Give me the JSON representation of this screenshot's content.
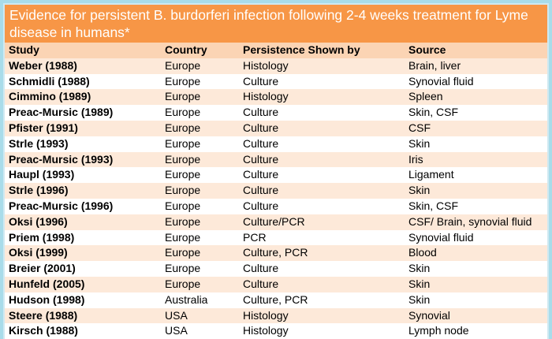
{
  "title": "Evidence for persistent B. burdorferi infection following 2-4 weeks treatment for Lyme disease in humans*",
  "headers": {
    "study": "Study",
    "country": "Country",
    "persistence": "Persistence Shown by",
    "source": "Source"
  },
  "rows": [
    {
      "study": "Weber (1988)",
      "country": "Europe",
      "persistence": "Histology",
      "source": "Brain, liver"
    },
    {
      "study": "Schmidli (1988)",
      "country": "Europe",
      "persistence": "Culture",
      "source": "Synovial fluid"
    },
    {
      "study": "Cimmino (1989)",
      "country": "Europe",
      "persistence": "Histology",
      "source": "Spleen"
    },
    {
      "study": "Preac-Mursic (1989)",
      "country": "Europe",
      "persistence": "Culture",
      "source": "Skin, CSF"
    },
    {
      "study": "Pfister (1991)",
      "country": "Europe",
      "persistence": "Culture",
      "source": "CSF"
    },
    {
      "study": "Strle (1993)",
      "country": "Europe",
      "persistence": "Culture",
      "source": "Skin"
    },
    {
      "study": "Preac-Mursic (1993)",
      "country": "Europe",
      "persistence": "Culture",
      "source": "Iris"
    },
    {
      "study": "Haupl (1993)",
      "country": "Europe",
      "persistence": "Culture",
      "source": "Ligament"
    },
    {
      "study": "Strle (1996)",
      "country": "Europe",
      "persistence": "Culture",
      "source": "Skin"
    },
    {
      "study": "Preac-Mursic (1996)",
      "country": "Europe",
      "persistence": "Culture",
      "source": "Skin, CSF"
    },
    {
      "study": "Oksi (1996)",
      "country": "Europe",
      "persistence": "Culture/PCR",
      "source": "CSF/ Brain, synovial fluid"
    },
    {
      "study": "Priem (1998)",
      "country": "Europe",
      "persistence": "PCR",
      "source": "Synovial fluid"
    },
    {
      "study": "Oksi (1999)",
      "country": "Europe",
      "persistence": "Culture, PCR",
      "source": "Blood"
    },
    {
      "study": "Breier (2001)",
      "country": "Europe",
      "persistence": "Culture",
      "source": "Skin"
    },
    {
      "study": "Hunfeld (2005)",
      "country": "Europe",
      "persistence": "Culture",
      "source": "Skin"
    },
    {
      "study": "Hudson (1998)",
      "country": "Australia",
      "persistence": "Culture, PCR",
      "source": "Skin"
    },
    {
      "study": "Steere (1988)",
      "country": "USA",
      "persistence": "Histology",
      "source": "Synovial"
    },
    {
      "study": "Kirsch (1988)",
      "country": "USA",
      "persistence": "Histology",
      "source": "Lymph node"
    }
  ],
  "colors": {
    "title_bg": "#f79646",
    "header_bg": "#fbd4b4",
    "row_band": "#fde9d9",
    "outer_bg": "#a9dcea"
  }
}
